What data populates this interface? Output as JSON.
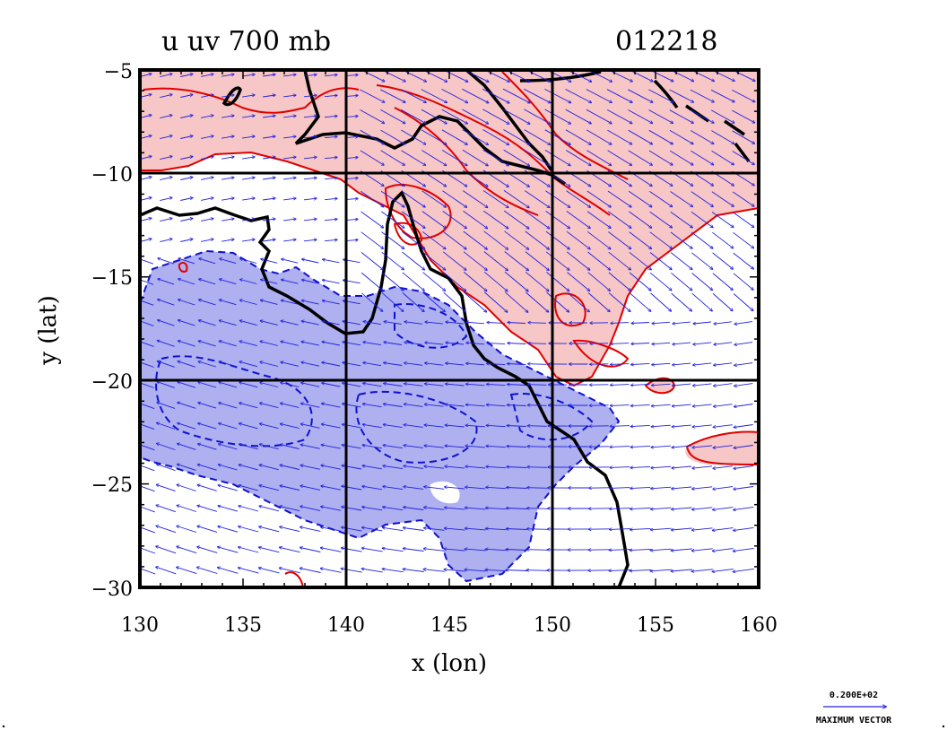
{
  "title": {
    "left": "u  uv  700  mb",
    "right": "012218"
  },
  "axes": {
    "x_label": "x (lon)",
    "y_label": "y (lat)",
    "x_ticks": [
      "130",
      "135",
      "140",
      "145",
      "150",
      "155",
      "160"
    ],
    "y_ticks": [
      "−5",
      "−10",
      "−15",
      "−20",
      "−25",
      "−30"
    ]
  },
  "legend": {
    "scale_value": "0.200E+02",
    "scale_caption": "MAXIMUM VECTOR"
  },
  "colors": {
    "positive_fill": "#f7c6c6",
    "positive_contour": "#e00000",
    "negative_fill": "#aeb0f0",
    "negative_contour": "#1010d0",
    "vector": "#2020e0",
    "coast": "#000000"
  },
  "chart_data": {
    "type": "map",
    "variable": "u",
    "overlay": "uv",
    "level": "700 mb",
    "date_code": "012218",
    "xlim": [
      130,
      160
    ],
    "ylim": [
      -30,
      -5
    ],
    "grid_lon": [
      140,
      150
    ],
    "grid_lat": [
      -10,
      -20
    ],
    "fields": [
      {
        "sign": "positive",
        "style": "solid red contours, pink fill",
        "region": "north and north-east of domain, band extending from 130E,-5 to 160E,-18"
      },
      {
        "sign": "negative",
        "style": "dashed blue contours, blue fill",
        "region": "central and south-west of domain, roughly 130-153E, -14 to -28"
      }
    ],
    "vectors": {
      "description": "wind vectors over whole domain; easterly to south-easterly in south, north-westerly in north-east"
    }
  }
}
